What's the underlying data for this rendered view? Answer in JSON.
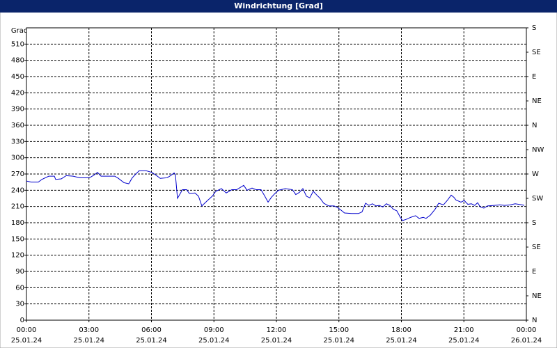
{
  "chart_data": {
    "type": "line",
    "title": "Windrichtung [Grad]",
    "y_label": "Grad",
    "x": [
      0,
      0.23,
      0.57,
      0.74,
      1.07,
      1.34,
      1.4,
      1.67,
      1.91,
      2.24,
      2.57,
      2.91,
      3.07,
      3.24,
      3.41,
      3.58,
      3.74,
      4.24,
      4.41,
      4.68,
      4.91,
      5.08,
      5.25,
      5.41,
      5.75,
      6.02,
      6.25,
      6.42,
      6.75,
      6.92,
      7.09,
      7.15,
      7.25,
      7.49,
      7.69,
      7.82,
      8.09,
      8.26,
      8.42,
      8.69,
      8.92,
      9.09,
      9.36,
      9.59,
      9.86,
      10.09,
      10.26,
      10.43,
      10.59,
      10.83,
      11.03,
      11.26,
      11.43,
      11.6,
      11.76,
      11.93,
      12.1,
      12.43,
      12.77,
      12.93,
      13.1,
      13.27,
      13.44,
      13.6,
      13.77,
      13.94,
      14.1,
      14.27,
      14.51,
      14.77,
      14.94,
      15.11,
      15.27,
      15.61,
      15.94,
      16.11,
      16.28,
      16.44,
      16.61,
      16.78,
      16.94,
      17.11,
      17.28,
      17.45,
      17.61,
      17.78,
      17.95,
      18.05,
      18.22,
      18.45,
      18.68,
      18.85,
      19.05,
      19.18,
      19.39,
      19.62,
      19.79,
      20.02,
      20.22,
      20.39,
      20.52,
      20.62,
      20.86,
      21.02,
      21.19,
      21.36,
      21.52,
      21.66,
      21.79,
      21.96,
      22.13,
      22.46,
      22.73,
      22.96,
      23.23,
      23.46,
      23.8,
      23.9
    ],
    "series": [
      {
        "color": "#0000cc",
        "values": [
          257,
          255,
          255,
          260,
          266,
          266,
          260,
          261,
          267,
          266,
          263,
          263,
          264,
          268,
          273,
          266,
          266,
          266,
          262,
          254,
          252,
          263,
          270,
          276,
          276,
          273,
          267,
          262,
          263,
          267,
          272,
          269,
          225,
          241,
          241,
          234,
          235,
          229,
          211,
          221,
          229,
          238,
          243,
          235,
          241,
          241,
          245,
          249,
          240,
          244,
          241,
          241,
          230,
          218,
          227,
          234,
          240,
          243,
          241,
          232,
          236,
          243,
          229,
          226,
          238,
          231,
          225,
          216,
          211,
          211,
          208,
          203,
          198,
          197,
          197,
          200,
          216,
          212,
          215,
          211,
          212,
          209,
          215,
          212,
          205,
          202,
          190,
          184,
          186,
          190,
          193,
          188,
          190,
          188,
          194,
          205,
          216,
          213,
          222,
          231,
          227,
          222,
          218,
          221,
          214,
          215,
          212,
          217,
          209,
          207,
          211,
          212,
          213,
          212,
          213,
          215,
          213,
          212
        ]
      }
    ],
    "xlim": [
      0,
      24
    ],
    "xticks": [
      {
        "value": 0,
        "label": "00:00"
      },
      {
        "value": 3,
        "label": "03:00"
      },
      {
        "value": 6,
        "label": "06:00"
      },
      {
        "value": 9,
        "label": "09:00"
      },
      {
        "value": 12,
        "label": "12:00"
      },
      {
        "value": 15,
        "label": "15:00"
      },
      {
        "value": 18,
        "label": "18:00"
      },
      {
        "value": 21,
        "label": "21:00"
      },
      {
        "value": 24,
        "label": "00:00"
      }
    ],
    "xtick_dates": [
      "25.01.24",
      "25.01.24",
      "25.01.24",
      "25.01.24",
      "25.01.24",
      "25.01.24",
      "25.01.24",
      "25.01.24",
      "26.01.24"
    ],
    "ylim": [
      0,
      540
    ],
    "yticks": [
      0,
      30,
      60,
      90,
      120,
      150,
      180,
      210,
      240,
      270,
      300,
      330,
      360,
      390,
      420,
      450,
      480,
      510
    ],
    "y2lim": [
      0,
      540
    ],
    "y2ticks": [
      {
        "value": 0,
        "label": "N"
      },
      {
        "value": 45,
        "label": "NE"
      },
      {
        "value": 90,
        "label": "E"
      },
      {
        "value": 135,
        "label": "SE"
      },
      {
        "value": 180,
        "label": "S"
      },
      {
        "value": 225,
        "label": "SW"
      },
      {
        "value": 270,
        "label": "W"
      },
      {
        "value": 315,
        "label": "NW"
      },
      {
        "value": 360,
        "label": "N"
      },
      {
        "value": 405,
        "label": "NE"
      },
      {
        "value": 450,
        "label": "E"
      },
      {
        "value": 495,
        "label": "SE"
      },
      {
        "value": 540,
        "label": "S"
      }
    ],
    "grid": true
  }
}
